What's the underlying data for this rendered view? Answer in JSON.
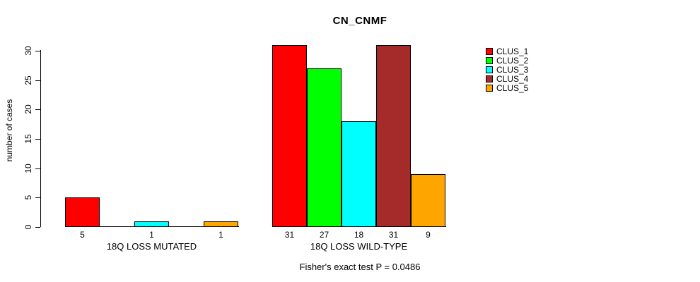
{
  "chart_data": {
    "type": "bar",
    "title": "CN_CNMF",
    "ylabel": "number of cases",
    "xlabel": "",
    "ylim": [
      0,
      30
    ],
    "yticks": [
      0,
      5,
      10,
      15,
      20,
      25,
      30
    ],
    "grid": false,
    "legend_position": "right",
    "categories": [
      "18Q LOSS MUTATED",
      "18Q LOSS WILD-TYPE"
    ],
    "series": [
      {
        "name": "CLUS_1",
        "color": "#FF0000",
        "values": [
          5,
          31
        ]
      },
      {
        "name": "CLUS_2",
        "color": "#00FF00",
        "values": [
          0,
          27
        ]
      },
      {
        "name": "CLUS_3",
        "color": "#00FFFF",
        "values": [
          1,
          18
        ]
      },
      {
        "name": "CLUS_4",
        "color": "#A52A2A",
        "values": [
          0,
          31
        ]
      },
      {
        "name": "CLUS_5",
        "color": "#FFA500",
        "values": [
          1,
          9
        ]
      }
    ],
    "bar_value_labels": {
      "18Q LOSS MUTATED": [
        "5",
        "",
        "1",
        "",
        "1"
      ],
      "18Q LOSS WILD-TYPE": [
        "31",
        "27",
        "18",
        "31",
        "9"
      ]
    },
    "annotation": "Fisher's exact test P = 0.0486"
  }
}
